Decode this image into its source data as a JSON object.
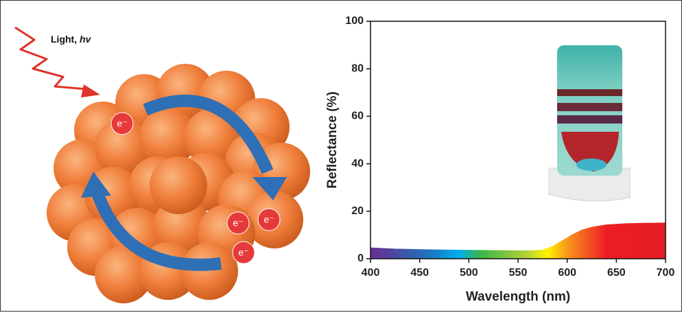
{
  "illustration": {
    "light_label": "Light,",
    "light_symbol": "hv",
    "electron_labels": [
      "e⁻",
      "e⁻",
      "e⁻",
      "e⁻"
    ]
  },
  "chart_data": {
    "type": "area",
    "x": [
      400,
      425,
      450,
      475,
      500,
      525,
      550,
      565,
      575,
      585,
      595,
      605,
      615,
      625,
      640,
      660,
      680,
      700
    ],
    "values": [
      4.5,
      4.0,
      3.8,
      3.6,
      3.5,
      3.4,
      3.3,
      3.3,
      3.6,
      5,
      7.5,
      10,
      12,
      13.2,
      14.2,
      14.7,
      14.9,
      15
    ],
    "x_label": "Wavelength (nm)",
    "y_label": "Reflectance (%)",
    "xlim": [
      400,
      700
    ],
    "xticks": [
      400,
      450,
      500,
      550,
      600,
      650,
      700
    ],
    "ylim": [
      0,
      100
    ],
    "yticks": [
      0,
      20,
      40,
      60,
      80,
      100
    ],
    "grid": false
  }
}
